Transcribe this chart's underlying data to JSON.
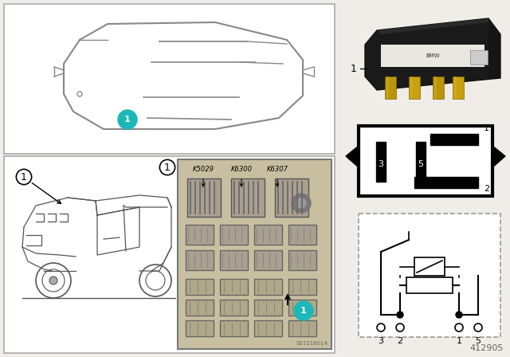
{
  "bg_color": "#f0ede8",
  "white": "#ffffff",
  "black": "#000000",
  "teal": "#1cb8b8",
  "dark_gray": "#333333",
  "med_gray": "#888888",
  "part_number": "412905",
  "watermark": "S01216014",
  "k_labels": [
    "K5029",
    "K6300",
    "K6307"
  ],
  "pin_labels": [
    "3",
    "2",
    "1",
    "5"
  ],
  "relay_label": "1"
}
